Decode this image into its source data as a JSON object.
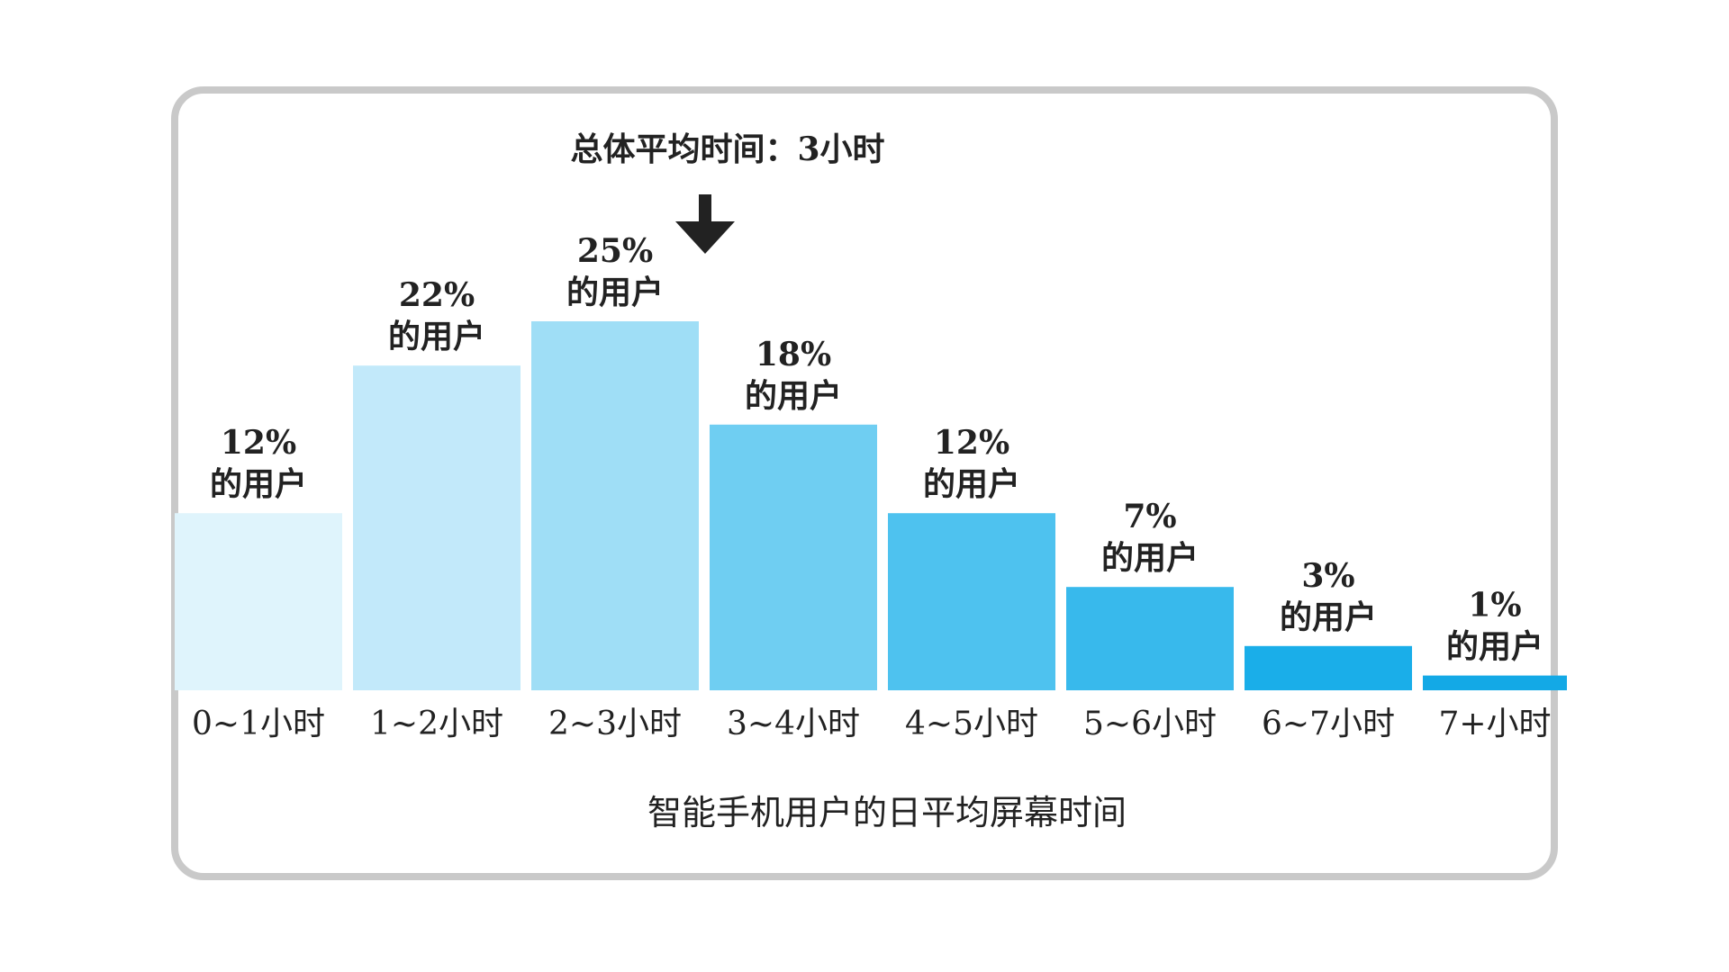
{
  "chart_data": {
    "type": "bar",
    "categories": [
      "0~1小时",
      "1~2小时",
      "2~3小时",
      "3~4小时",
      "4~5小时",
      "5~6小时",
      "6~7小时",
      "7+小时"
    ],
    "values": [
      12,
      22,
      25,
      18,
      12,
      7,
      3,
      1
    ],
    "bar_labels": [
      "12%",
      "22%",
      "25%",
      "18%",
      "12%",
      "7%",
      "3%",
      "1%"
    ],
    "bar_sublabel": "的用户",
    "xlabel": "智能手机用户的日平均屏幕时间",
    "ylabel": "",
    "annotation": "总体平均时间：3小时",
    "annotation_at": 3,
    "ylim": [
      0,
      25
    ],
    "colors": [
      "#dff4fc",
      "#c2e9fa",
      "#9fdef6",
      "#6fcef2",
      "#4ec2ef",
      "#38b9ec",
      "#1aaee9",
      "#13a9e6"
    ]
  }
}
